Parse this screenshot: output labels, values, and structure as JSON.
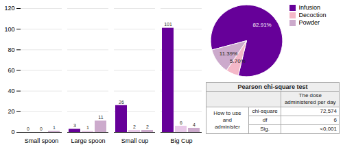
{
  "chart_data": [
    {
      "type": "bar",
      "categories": [
        "Small spoon",
        "Large spoon",
        "Small cup",
        "Big Cup"
      ],
      "series": [
        {
          "name": "Infusion",
          "color": "#660099",
          "values": [
            0,
            3,
            26,
            101
          ]
        },
        {
          "name": "Decoction",
          "color": "#e8c8e8",
          "values": [
            0,
            1,
            2,
            6
          ]
        },
        {
          "name": "Powder",
          "color": "#ccaacc",
          "values": [
            1,
            11,
            2,
            4
          ]
        }
      ],
      "ylim": [
        0,
        120
      ],
      "yticks": [
        0,
        20,
        40,
        60,
        80,
        100,
        120
      ],
      "grid": true,
      "data_labels": true
    },
    {
      "type": "pie",
      "categories": [
        "Infusion",
        "Decoction",
        "Powder"
      ],
      "values": [
        82.91,
        5.7,
        11.39
      ],
      "value_labels": [
        "82.91%",
        "5.70%",
        "11.39%"
      ],
      "colors": [
        "#660099",
        "#f4b8c8",
        "#ccaacc"
      ],
      "data_labels": true,
      "legend": "upper right"
    },
    {
      "type": "table",
      "title": "Pearson chi-square test",
      "column_header": "The dose\nadministered per day",
      "row_header": "How to use and\nadminister",
      "rows": [
        [
          "chi-square",
          "72,574"
        ],
        [
          "df",
          "6"
        ],
        [
          "Sig.",
          "<0,001"
        ]
      ]
    }
  ]
}
